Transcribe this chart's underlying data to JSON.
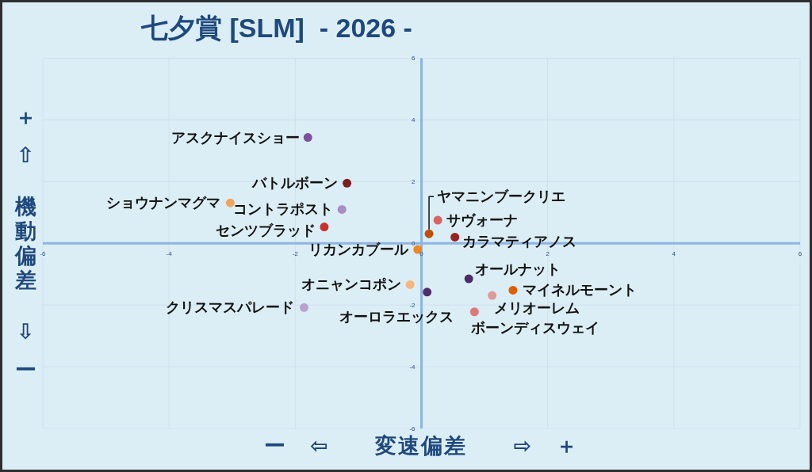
{
  "chart_data": {
    "type": "scatter",
    "title": "七夕賞 [SLM]  - 2026 -",
    "xlabel": "ー　⇦　　変速偏差　　⇨　＋",
    "ylabel": "＋　⇧　　機動偏差　　⇩　ー",
    "xlim": [
      -6,
      6
    ],
    "ylim": [
      -6,
      6
    ],
    "xticks": [
      -6,
      -4,
      -2,
      0,
      2,
      4,
      6
    ],
    "yticks": [
      -6,
      -4,
      -2,
      0,
      2,
      4,
      6
    ],
    "grid": true,
    "marker": "circle",
    "series": [
      {
        "name": "アスクナイスショー",
        "color": "#7b4fa0",
        "x": [
          -1.8
        ],
        "values": [
          3.43
        ]
      },
      {
        "name": "バトルボーン",
        "color": "#7b1e1e",
        "x": [
          -1.18
        ],
        "values": [
          1.95
        ]
      },
      {
        "name": "ショウナンマグマ",
        "color": "#f0a45e",
        "x": [
          -3.03
        ],
        "values": [
          1.31
        ]
      },
      {
        "name": "コントラポスト",
        "color": "#a88cc4",
        "x": [
          -1.26
        ],
        "values": [
          1.1
        ]
      },
      {
        "name": "センツブラッド",
        "color": "#c8302e",
        "x": [
          -1.54
        ],
        "values": [
          0.53
        ]
      },
      {
        "name": "リカンカブール",
        "color": "#ef8526",
        "x": [
          -0.06
        ],
        "values": [
          -0.2
        ]
      },
      {
        "name": "ヤマニンブークリエ",
        "color": "#bf4f06",
        "x": [
          0.12
        ],
        "values": [
          0.31
        ]
      },
      {
        "name": "サヴォーナ",
        "color": "#d86464",
        "x": [
          0.26
        ],
        "values": [
          0.75
        ]
      },
      {
        "name": "カラマティアノス",
        "color": "#9a2222",
        "x": [
          0.53
        ],
        "values": [
          0.2
        ]
      },
      {
        "name": "オールナット",
        "color": "#4b2c66",
        "x": [
          0.75
        ],
        "values": [
          -1.15
        ]
      },
      {
        "name": "マイネルモーント",
        "color": "#e05f05",
        "x": [
          1.45
        ],
        "values": [
          -1.52
        ]
      },
      {
        "name": "メリオーレム",
        "color": "#e09a9a",
        "x": [
          1.12
        ],
        "values": [
          -1.69
        ]
      },
      {
        "name": "ボーンディスウェイ",
        "color": "#e07878",
        "x": [
          0.84
        ],
        "values": [
          -2.22
        ]
      },
      {
        "name": "オニャンコポン",
        "color": "#f6b67e",
        "x": [
          -0.18
        ],
        "values": [
          -1.34
        ]
      },
      {
        "name": "オーロラエックス",
        "color": "#4e2f68",
        "x": [
          0.09
        ],
        "values": [
          -1.58
        ]
      },
      {
        "name": "クリスマスパレード",
        "color": "#b8a2cc",
        "x": [
          -1.86
        ],
        "values": [
          -2.08
        ]
      }
    ]
  }
}
